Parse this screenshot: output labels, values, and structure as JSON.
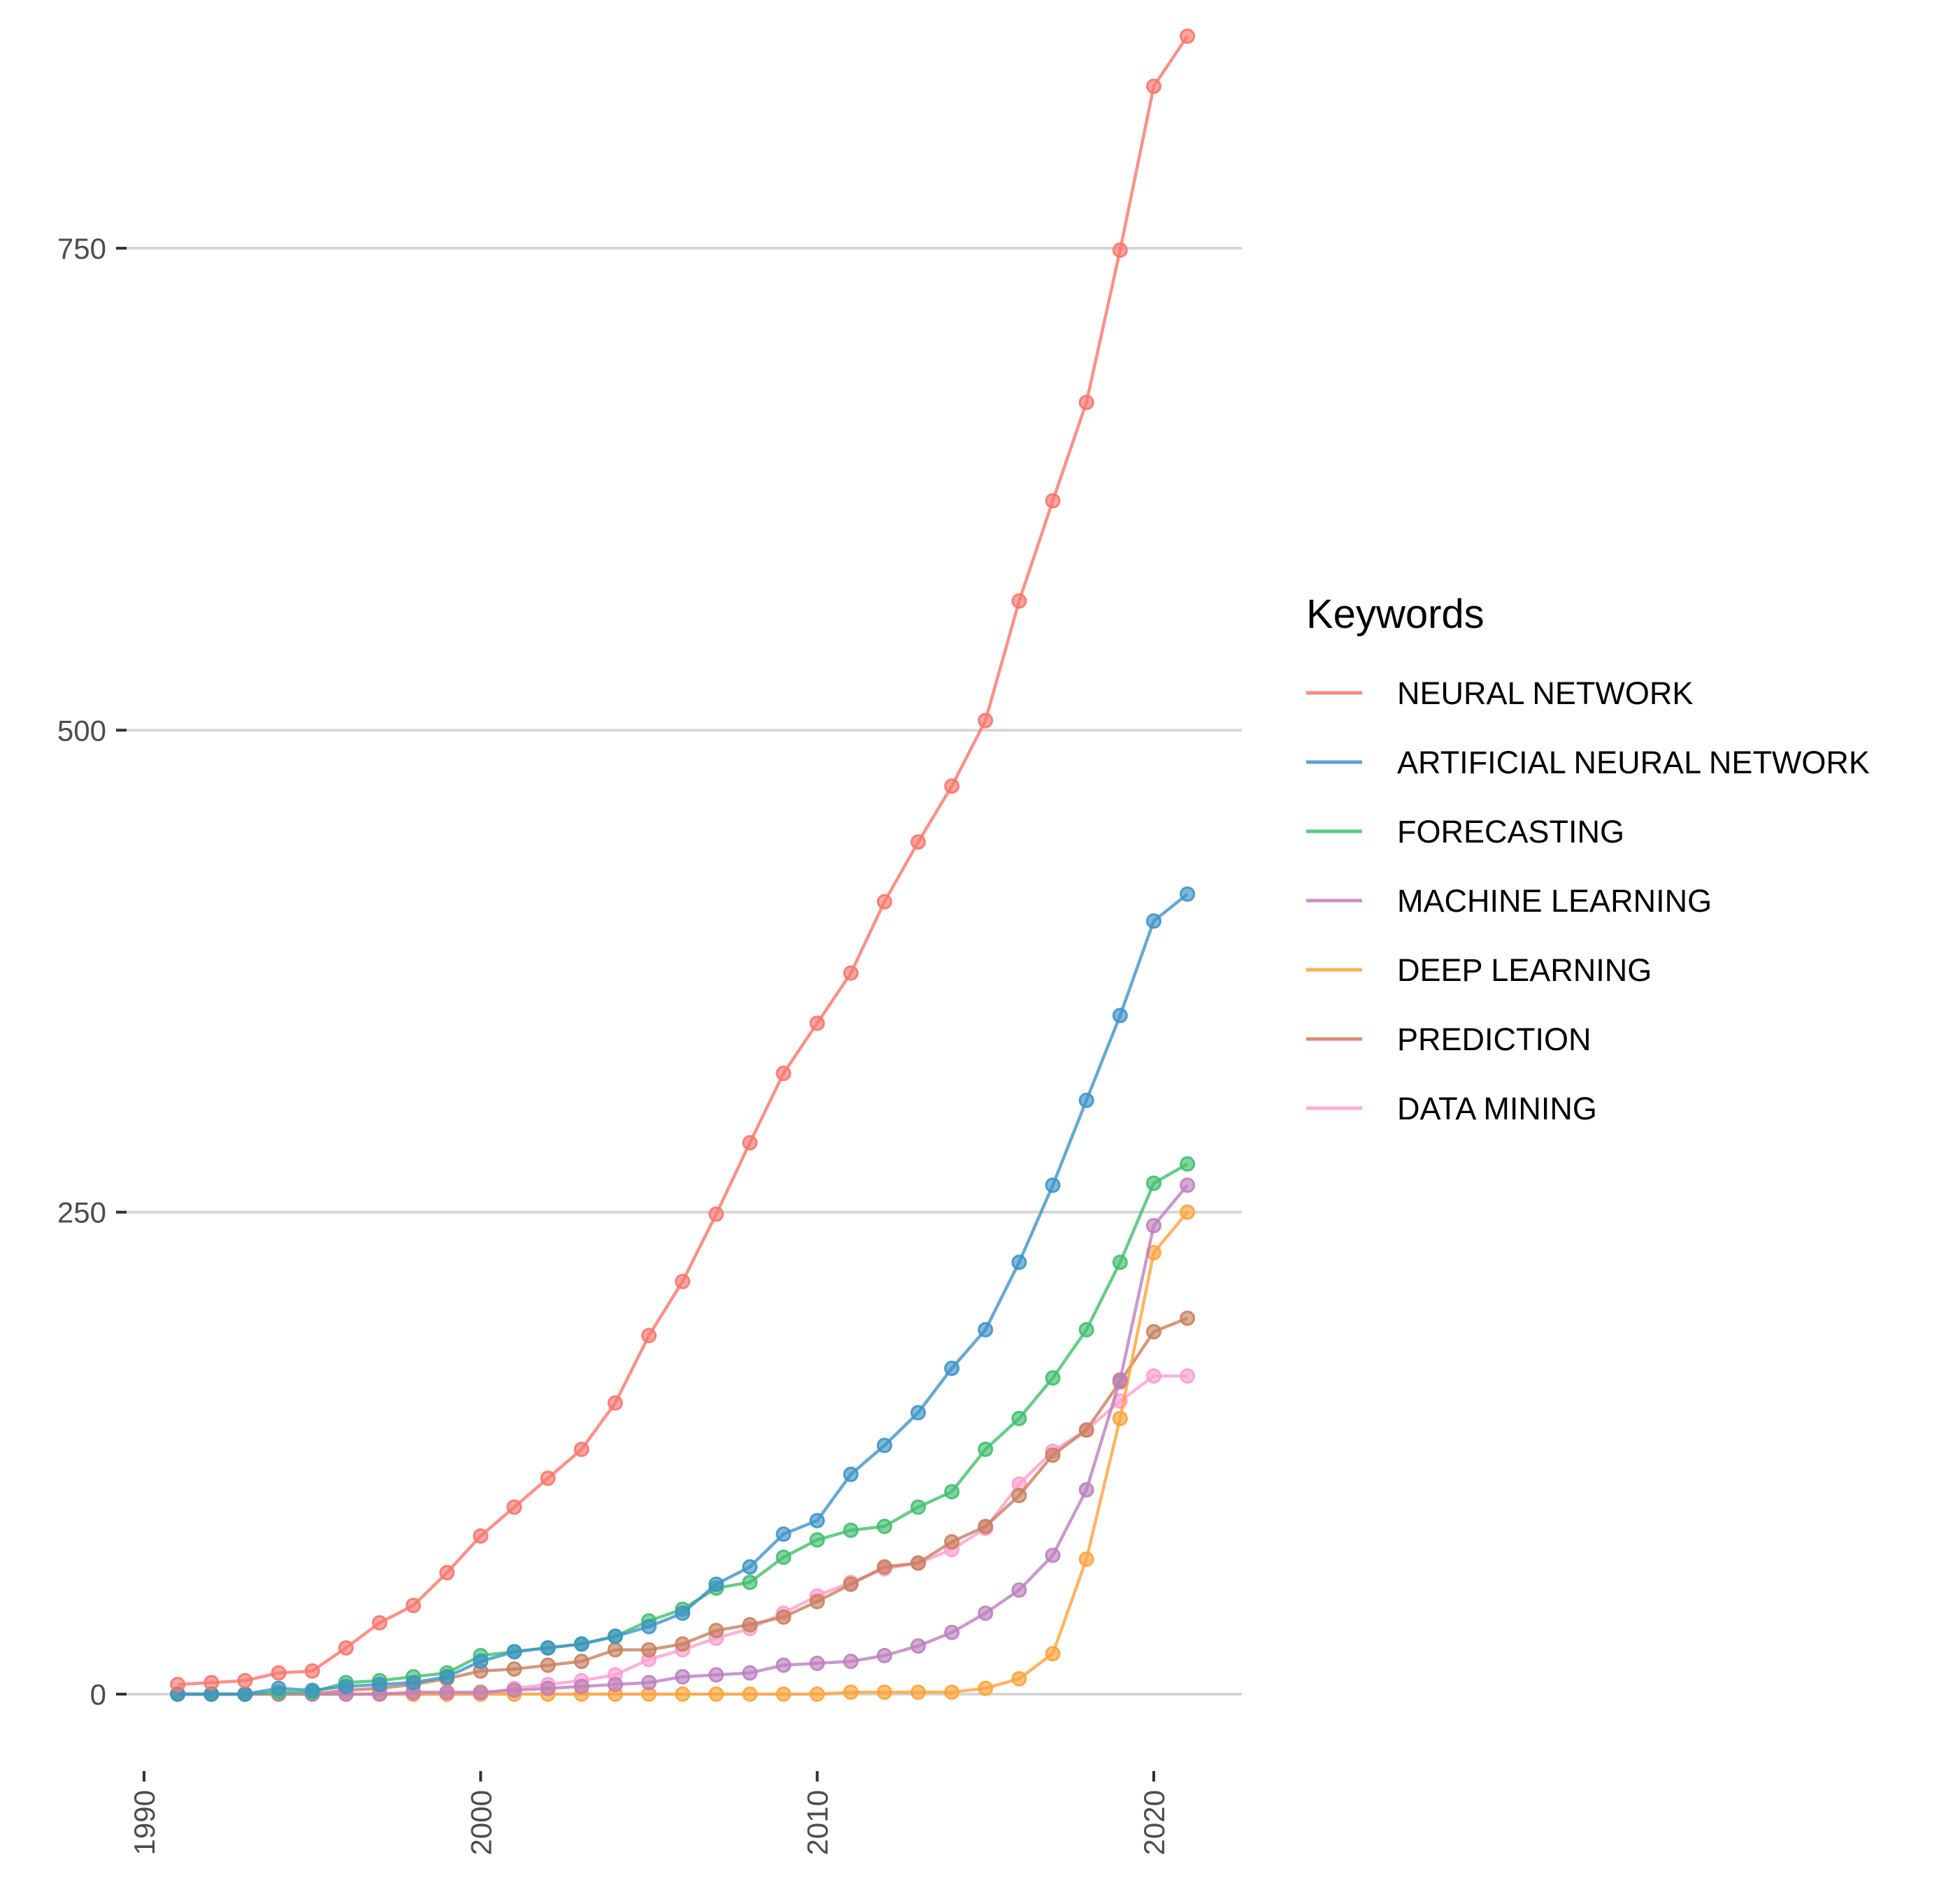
{
  "chart_data": {
    "type": "line",
    "title": "",
    "xlabel": "",
    "ylabel": "",
    "xlim": [
      1990,
      2021
    ],
    "ylim": [
      -50,
      860
    ],
    "x_ticks": [
      1990,
      2000,
      2010,
      2020
    ],
    "y_ticks": [
      0,
      250,
      500,
      750
    ],
    "grid": "horizontal",
    "legend": {
      "title": "Keywords",
      "position": "right"
    },
    "x": [
      1991,
      1992,
      1993,
      1994,
      1995,
      1996,
      1997,
      1998,
      1999,
      2000,
      2001,
      2002,
      2003,
      2004,
      2005,
      2006,
      2007,
      2008,
      2009,
      2010,
      2011,
      2012,
      2013,
      2014,
      2015,
      2016,
      2017,
      2018,
      2019,
      2020,
      2021
    ],
    "series": [
      {
        "name": "NEURAL NETWORK",
        "color": "#F8766D",
        "values": [
          5,
          6,
          7,
          11,
          12,
          24,
          37,
          46,
          63,
          82,
          97,
          112,
          127,
          151,
          186,
          214,
          249,
          286,
          322,
          348,
          374,
          411,
          442,
          471,
          505,
          567,
          619,
          670,
          749,
          834,
          860
        ]
      },
      {
        "name": "ARTIFICIAL NEURAL NETWORK",
        "color": "#3E94C8",
        "values": [
          0,
          0,
          0,
          3,
          2,
          4,
          5,
          6,
          9,
          17,
          22,
          24,
          26,
          30,
          35,
          42,
          57,
          66,
          83,
          90,
          114,
          129,
          146,
          169,
          189,
          224,
          264,
          308,
          352,
          401,
          415
        ]
      },
      {
        "name": "FORECASTING",
        "color": "#41BE6E",
        "values": [
          0,
          0,
          0,
          1,
          1,
          6,
          7,
          9,
          11,
          20,
          22,
          24,
          26,
          30,
          38,
          44,
          55,
          58,
          71,
          80,
          85,
          87,
          97,
          105,
          127,
          143,
          164,
          189,
          224,
          265,
          275
        ]
      },
      {
        "name": "MACHINE LEARNING",
        "color": "#BD80BF",
        "values": [
          0,
          0,
          0,
          0,
          0,
          0,
          0,
          1,
          1,
          1,
          2,
          3,
          4,
          5,
          6,
          9,
          10,
          11,
          15,
          16,
          17,
          20,
          25,
          32,
          42,
          54,
          72,
          106,
          163,
          243,
          264
        ]
      },
      {
        "name": "DEEP LEARNING",
        "color": "#FFA33A",
        "values": [
          0,
          0,
          0,
          0,
          0,
          0,
          0,
          0,
          0,
          0,
          0,
          0,
          0,
          0,
          0,
          0,
          0,
          0,
          0,
          0,
          1,
          1,
          1,
          1,
          3,
          8,
          21,
          70,
          143,
          229,
          250
        ]
      },
      {
        "name": "PREDICTION",
        "color": "#C97F5E",
        "values": [
          0,
          0,
          0,
          0,
          0,
          2,
          3,
          5,
          8,
          12,
          13,
          15,
          17,
          23,
          23,
          26,
          33,
          36,
          40,
          48,
          57,
          66,
          68,
          79,
          87,
          103,
          124,
          137,
          162,
          188,
          195
        ]
      },
      {
        "name": "DATA MINING",
        "color": "#FF9ECE",
        "values": [
          0,
          0,
          0,
          0,
          0,
          0,
          0,
          0,
          0,
          0,
          3,
          5,
          7,
          10,
          18,
          23,
          29,
          34,
          42,
          51,
          58,
          65,
          68,
          75,
          86,
          109,
          126,
          137,
          152,
          165,
          165
        ]
      }
    ]
  }
}
